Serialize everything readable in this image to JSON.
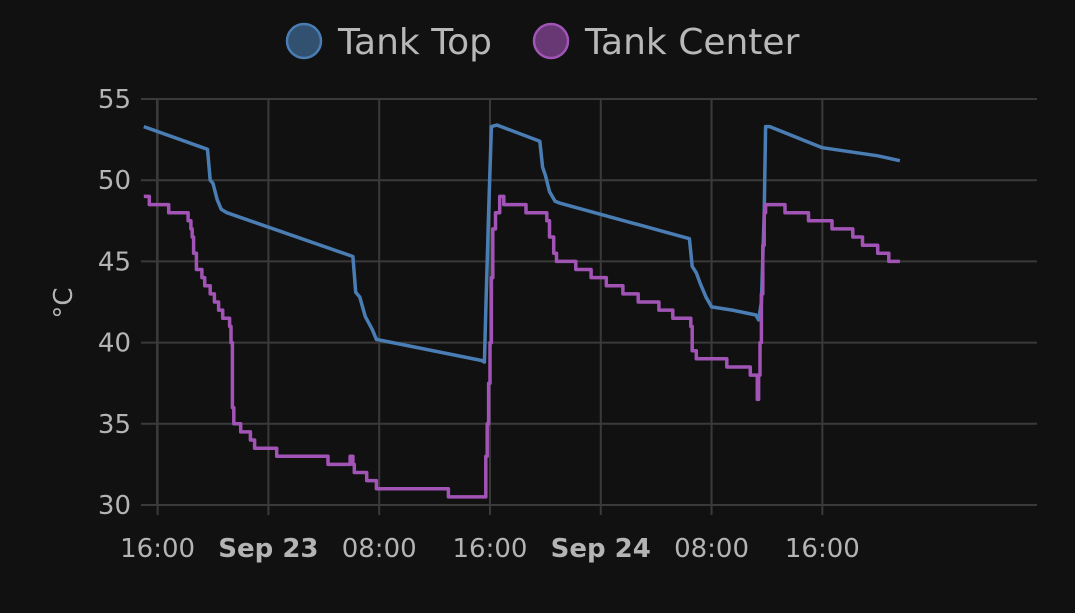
{
  "chart_data": {
    "type": "line",
    "ylabel": "°C",
    "ylim": [
      30,
      55
    ],
    "yticks": [
      30,
      35,
      40,
      45,
      50,
      55
    ],
    "xlim_hours": [
      -9.2,
      55.5
    ],
    "xticks": [
      {
        "label": "16:00",
        "hour": -8,
        "bold": false
      },
      {
        "label": "Sep 23",
        "hour": 0,
        "bold": true
      },
      {
        "label": "08:00",
        "hour": 8,
        "bold": false
      },
      {
        "label": "16:00",
        "hour": 16,
        "bold": false
      },
      {
        "label": "Sep 24",
        "hour": 24,
        "bold": true
      },
      {
        "label": "08:00",
        "hour": 32,
        "bold": false
      },
      {
        "label": "16:00",
        "hour": 40,
        "bold": false
      }
    ],
    "grid": true,
    "legend_position": "top-center",
    "series": [
      {
        "name": "Tank Top",
        "color": "#4a7db3",
        "step": false,
        "points": [
          [
            -9.0,
            53.3
          ],
          [
            -4.4,
            51.9
          ],
          [
            -4.2,
            50.0
          ],
          [
            -4.0,
            49.8
          ],
          [
            -3.7,
            48.8
          ],
          [
            -3.4,
            48.2
          ],
          [
            -3.0,
            48.0
          ],
          [
            6.1,
            45.3
          ],
          [
            6.3,
            43.1
          ],
          [
            6.6,
            42.8
          ],
          [
            7.0,
            41.6
          ],
          [
            7.5,
            40.8
          ],
          [
            7.8,
            40.2
          ],
          [
            15.4,
            38.9
          ],
          [
            15.6,
            38.8
          ],
          [
            15.7,
            42.0
          ],
          [
            15.9,
            48.0
          ],
          [
            16.1,
            53.3
          ],
          [
            16.5,
            53.4
          ],
          [
            19.6,
            52.4
          ],
          [
            19.8,
            50.8
          ],
          [
            20.0,
            50.3
          ],
          [
            20.3,
            49.3
          ],
          [
            20.7,
            48.7
          ],
          [
            21.0,
            48.6
          ],
          [
            30.4,
            46.4
          ],
          [
            30.6,
            44.7
          ],
          [
            30.9,
            44.3
          ],
          [
            31.2,
            43.6
          ],
          [
            31.6,
            42.8
          ],
          [
            32.0,
            42.2
          ],
          [
            33.5,
            42.0
          ],
          [
            35.2,
            41.7
          ],
          [
            35.4,
            41.4
          ],
          [
            35.6,
            42.5
          ],
          [
            35.8,
            48.0
          ],
          [
            35.9,
            53.3
          ],
          [
            36.2,
            53.3
          ],
          [
            40.0,
            52.0
          ],
          [
            44.0,
            51.5
          ],
          [
            45.6,
            51.2
          ]
        ]
      },
      {
        "name": "Tank Center",
        "color": "#a154b5",
        "step": true,
        "points": [
          [
            -9.0,
            49.0
          ],
          [
            -8.6,
            48.5
          ],
          [
            -7.2,
            48.5
          ],
          [
            -7.2,
            48.0
          ],
          [
            -5.9,
            48.0
          ],
          [
            -5.8,
            47.5
          ],
          [
            -5.6,
            47.0
          ],
          [
            -5.5,
            46.5
          ],
          [
            -5.4,
            45.5
          ],
          [
            -5.2,
            44.5
          ],
          [
            -4.8,
            44.0
          ],
          [
            -4.6,
            43.5
          ],
          [
            -4.2,
            43.0
          ],
          [
            -3.9,
            42.5
          ],
          [
            -3.6,
            42.0
          ],
          [
            -3.3,
            41.5
          ],
          [
            -2.8,
            41.0
          ],
          [
            -2.7,
            40.0
          ],
          [
            -2.6,
            36.0
          ],
          [
            -2.5,
            35.0
          ],
          [
            -2.0,
            34.5
          ],
          [
            -1.3,
            34.0
          ],
          [
            -1.0,
            33.5
          ],
          [
            0.5,
            33.5
          ],
          [
            0.6,
            33.0
          ],
          [
            4.2,
            33.0
          ],
          [
            4.3,
            32.5
          ],
          [
            5.8,
            32.5
          ],
          [
            5.9,
            33.0
          ],
          [
            6.1,
            32.5
          ],
          [
            6.2,
            32.0
          ],
          [
            6.9,
            32.0
          ],
          [
            7.1,
            31.5
          ],
          [
            7.6,
            31.5
          ],
          [
            7.8,
            31.0
          ],
          [
            12.9,
            31.0
          ],
          [
            13.0,
            30.5
          ],
          [
            15.6,
            30.5
          ],
          [
            15.7,
            33.0
          ],
          [
            15.8,
            35.0
          ],
          [
            15.9,
            37.5
          ],
          [
            16.0,
            40.0
          ],
          [
            16.1,
            44.0
          ],
          [
            16.2,
            47.0
          ],
          [
            16.4,
            48.0
          ],
          [
            16.7,
            49.0
          ],
          [
            17.0,
            48.5
          ],
          [
            18.5,
            48.5
          ],
          [
            18.6,
            48.0
          ],
          [
            19.8,
            48.0
          ],
          [
            20.1,
            47.5
          ],
          [
            20.3,
            46.5
          ],
          [
            20.6,
            45.5
          ],
          [
            20.8,
            45.0
          ],
          [
            22.1,
            45.0
          ],
          [
            22.2,
            44.5
          ],
          [
            23.2,
            44.5
          ],
          [
            23.3,
            44.0
          ],
          [
            24.3,
            44.0
          ],
          [
            24.4,
            43.5
          ],
          [
            25.5,
            43.5
          ],
          [
            25.6,
            43.0
          ],
          [
            26.6,
            43.0
          ],
          [
            26.7,
            42.5
          ],
          [
            28.1,
            42.5
          ],
          [
            28.2,
            42.0
          ],
          [
            29.1,
            42.0
          ],
          [
            29.2,
            41.5
          ],
          [
            30.4,
            41.5
          ],
          [
            30.5,
            41.0
          ],
          [
            30.6,
            39.5
          ],
          [
            30.9,
            39.0
          ],
          [
            33.0,
            39.0
          ],
          [
            33.1,
            38.5
          ],
          [
            34.7,
            38.5
          ],
          [
            34.8,
            38.0
          ],
          [
            35.2,
            38.0
          ],
          [
            35.3,
            36.5
          ],
          [
            35.4,
            38.0
          ],
          [
            35.5,
            40.0
          ],
          [
            35.6,
            43.0
          ],
          [
            35.7,
            46.0
          ],
          [
            35.8,
            48.0
          ],
          [
            35.9,
            48.5
          ],
          [
            37.2,
            48.5
          ],
          [
            37.3,
            48.0
          ],
          [
            38.9,
            48.0
          ],
          [
            39.0,
            47.5
          ],
          [
            40.6,
            47.5
          ],
          [
            40.7,
            47.0
          ],
          [
            42.1,
            47.0
          ],
          [
            42.2,
            46.5
          ],
          [
            42.8,
            46.5
          ],
          [
            42.9,
            46.0
          ],
          [
            43.9,
            46.0
          ],
          [
            44.0,
            45.5
          ],
          [
            44.7,
            45.5
          ],
          [
            44.8,
            45.0
          ],
          [
            45.6,
            45.0
          ]
        ]
      }
    ]
  }
}
